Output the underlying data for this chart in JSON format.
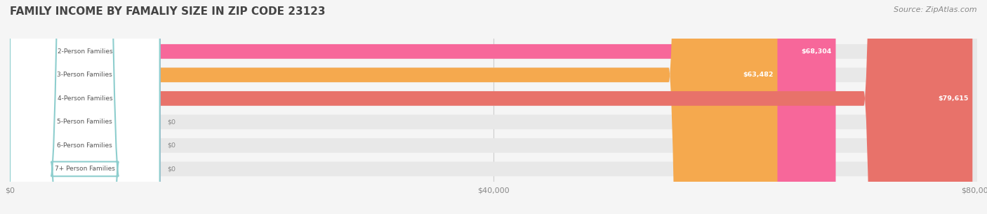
{
  "title": "FAMILY INCOME BY FAMALIY SIZE IN ZIP CODE 23123",
  "source": "Source: ZipAtlas.com",
  "categories": [
    "2-Person Families",
    "3-Person Families",
    "4-Person Families",
    "5-Person Families",
    "6-Person Families",
    "7+ Person Families"
  ],
  "values": [
    68304,
    63482,
    79615,
    0,
    0,
    0
  ],
  "bar_colors": [
    "#F7679A",
    "#F5A94E",
    "#E8726A",
    "#A8BEE0",
    "#C0A8D8",
    "#8ECECE"
  ],
  "value_labels": [
    "$68,304",
    "$63,482",
    "$79,615",
    "$0",
    "$0",
    "$0"
  ],
  "xlim": [
    0,
    80000
  ],
  "xticks": [
    0,
    40000,
    80000
  ],
  "xticklabels": [
    "$0",
    "$40,000",
    "$80,000"
  ],
  "background_color": "#f5f5f5",
  "bar_background": "#e8e8e8",
  "title_fontsize": 11,
  "source_fontsize": 8,
  "bar_height": 0.62,
  "figsize": [
    14.06,
    3.05
  ],
  "dpi": 100
}
